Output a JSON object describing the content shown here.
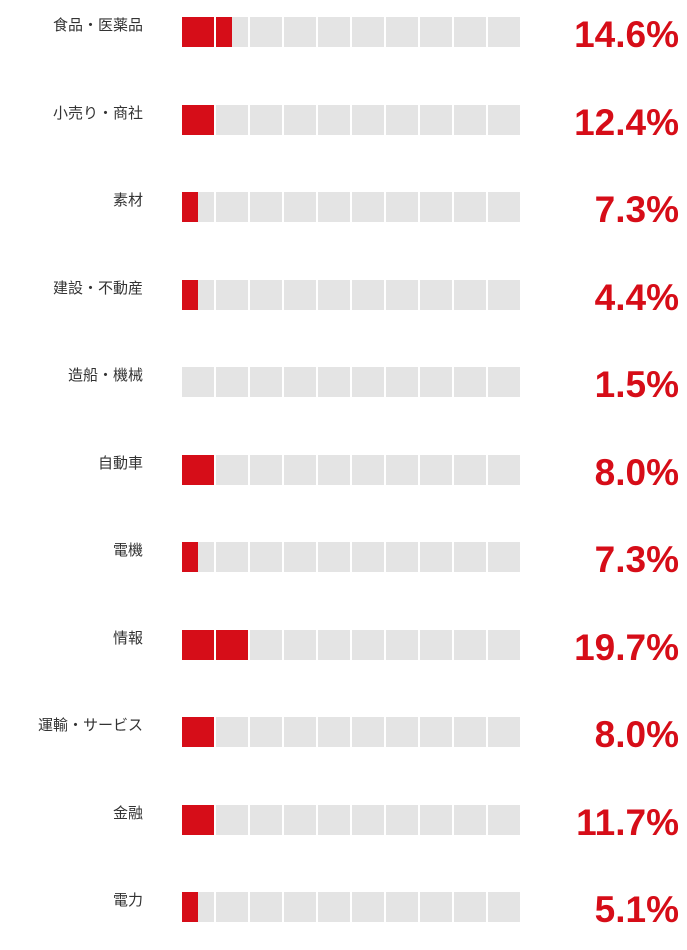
{
  "chart_data": {
    "type": "bar",
    "categories": [
      "食品・医薬品",
      "小売り・商社",
      "素材",
      "建設・不動産",
      "造船・機械",
      "自動車",
      "電機",
      "情報",
      "運輸・サービス",
      "金融",
      "電力"
    ],
    "values": [
      14.6,
      12.4,
      7.3,
      4.4,
      1.5,
      8.0,
      7.3,
      19.7,
      8.0,
      11.7,
      5.1
    ],
    "value_labels": [
      "14.6%",
      "12.4%",
      "7.3%",
      "4.4%",
      "1.5%",
      "8.0%",
      "7.3%",
      "19.7%",
      "8.0%",
      "11.7%",
      "5.1%"
    ],
    "filled_cells": [
      1.5,
      1.0,
      0.5,
      0.5,
      0,
      1.0,
      0.5,
      2.0,
      1.0,
      1.0,
      0.5
    ],
    "total_cells": 10,
    "legend": "none",
    "grid": false
  },
  "colors": {
    "fill": "#d60d18",
    "empty": "#e4e4e4",
    "value_text": "#d60d18",
    "label_text": "#333333"
  }
}
